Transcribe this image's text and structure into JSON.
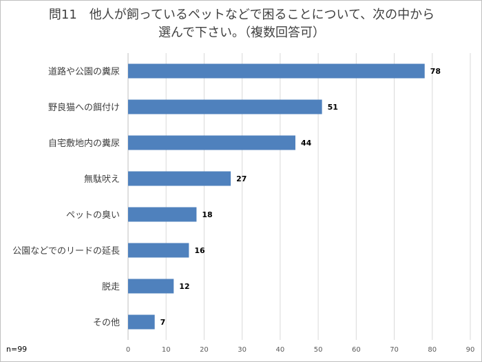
{
  "title_lines": [
    "問11　他人が飼っているペットなどで困ることについて、次の中から",
    "選んで下さい。（複数回答可）"
  ],
  "note": "n=99",
  "colors": {
    "bar": "#4f81bd",
    "grid": "#d9d9d9",
    "axis_text": "#595959"
  },
  "chart_data": {
    "type": "bar",
    "orientation": "horizontal",
    "categories": [
      "道路や公園の糞尿",
      "野良猫への餌付け",
      "自宅敷地内の糞尿",
      "無駄吠え",
      "ペットの臭い",
      "公園などでのリードの延長",
      "脱走",
      "その他"
    ],
    "values": [
      78,
      51,
      44,
      27,
      18,
      16,
      12,
      7
    ],
    "xlim": [
      0,
      90
    ],
    "xticks": [
      0,
      10,
      20,
      30,
      40,
      50,
      60,
      70,
      80,
      90
    ],
    "grid": "vertical",
    "data_labels": true,
    "legend": "none"
  }
}
